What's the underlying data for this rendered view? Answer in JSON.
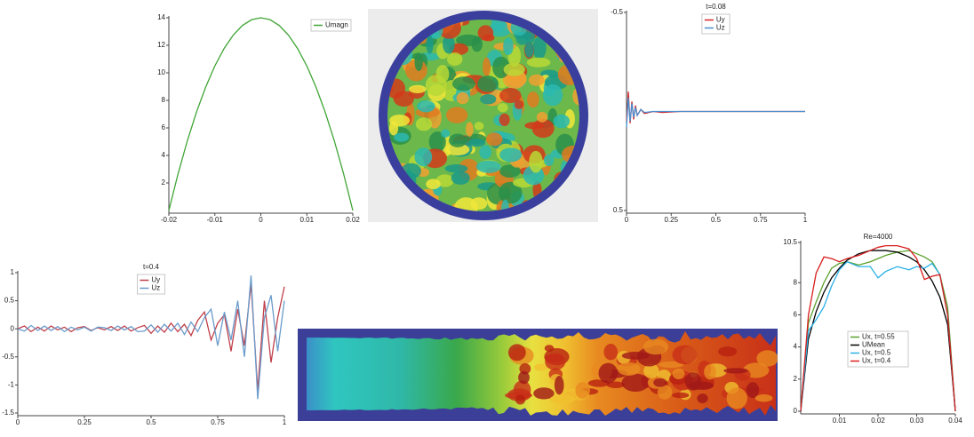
{
  "chart_data": [
    {
      "type": "line",
      "x": [
        -0.02,
        -0.018,
        -0.016,
        -0.014,
        -0.012,
        -0.01,
        -0.008,
        -0.006,
        -0.004,
        -0.002,
        0,
        0.002,
        0.004,
        0.006,
        0.008,
        0.01,
        0.012,
        0.014,
        0.016,
        0.018,
        0.02
      ],
      "series": [
        {
          "name": "Umagn",
          "color": "#3fa535",
          "values": [
            0,
            2.66,
            5.04,
            7.14,
            8.96,
            10.5,
            11.76,
            12.74,
            13.44,
            13.86,
            14,
            13.86,
            13.44,
            12.74,
            11.76,
            10.5,
            8.96,
            7.14,
            5.04,
            2.66,
            0
          ]
        }
      ],
      "xlim": [
        -0.02,
        0.02
      ],
      "ylim": [
        0,
        14
      ],
      "xticks": [
        -0.02,
        -0.01,
        0,
        0.01,
        0.02
      ],
      "yticks": [
        2,
        4,
        6,
        8,
        10,
        12,
        14
      ],
      "legend": "upper right"
    },
    {
      "type": "line",
      "title": "t=0.08",
      "x": [
        0,
        0.01,
        0.02,
        0.03,
        0.04,
        0.05,
        0.06,
        0.08,
        0.1,
        0.15,
        0.2,
        0.3,
        1
      ],
      "series": [
        {
          "name": "Uy",
          "color": "#d62728",
          "values": [
            0.05,
            -0.1,
            0.06,
            -0.05,
            0.04,
            -0.03,
            0.02,
            -0.01,
            0.01,
            0,
            0.005,
            0,
            0
          ]
        },
        {
          "name": "Uz",
          "color": "#4a8fd0",
          "values": [
            0.08,
            -0.07,
            0.05,
            -0.04,
            0.03,
            -0.02,
            0.02,
            -0.01,
            0.005,
            0,
            0,
            0,
            0
          ]
        }
      ],
      "xlim": [
        0,
        1
      ],
      "ylim": [
        -0.5,
        0.5
      ],
      "y_inverted": true,
      "xticks": [
        0,
        0.25,
        0.5,
        0.75,
        1
      ],
      "yticks": [
        -0.5,
        0.5
      ],
      "legend": "upper center"
    },
    {
      "type": "line",
      "title": "t=0.4",
      "x": [
        0,
        0.025,
        0.05,
        0.075,
        0.1,
        0.125,
        0.15,
        0.175,
        0.2,
        0.225,
        0.25,
        0.275,
        0.3,
        0.325,
        0.35,
        0.375,
        0.4,
        0.425,
        0.45,
        0.475,
        0.5,
        0.525,
        0.55,
        0.575,
        0.6,
        0.625,
        0.65,
        0.675,
        0.7,
        0.725,
        0.75,
        0.775,
        0.8,
        0.825,
        0.85,
        0.875,
        0.9,
        0.925,
        0.95,
        0.975,
        1
      ],
      "series": [
        {
          "name": "Uy",
          "color": "#c0404a",
          "values": [
            0,
            0.05,
            -0.05,
            0.03,
            -0.04,
            0.05,
            -0.02,
            0.03,
            -0.05,
            0.02,
            0.04,
            -0.03,
            0.02,
            -0.02,
            0.04,
            -0.03,
            0.05,
            -0.04,
            0.02,
            0.06,
            -0.08,
            0.05,
            -0.06,
            0.1,
            -0.05,
            0.08,
            -0.12,
            0.15,
            0.3,
            -0.2,
            0.1,
            0.25,
            -0.4,
            0.35,
            -0.3,
            0.8,
            -1.1,
            0.5,
            -0.6,
            0.2,
            0.75
          ]
        },
        {
          "name": "Uz",
          "color": "#6a9ccc",
          "values": [
            0,
            -0.04,
            0.06,
            -0.03,
            0.05,
            -0.03,
            0.04,
            -0.05,
            0.03,
            -0.02,
            0.03,
            -0.04,
            0.03,
            0.02,
            -0.03,
            0.05,
            -0.02,
            0.04,
            -0.05,
            -0.04,
            0.07,
            -0.06,
            0.08,
            -0.04,
            0.1,
            -0.1,
            0.12,
            -0.05,
            0.2,
            0.35,
            -0.3,
            0.3,
            -0.2,
            0.5,
            -0.5,
            0.95,
            -1.25,
            0.2,
            0.6,
            -0.4,
            0.5
          ]
        }
      ],
      "xlim": [
        0,
        1
      ],
      "ylim": [
        -1.5,
        1
      ],
      "xticks": [
        0,
        0.25,
        0.5,
        0.75,
        1
      ],
      "yticks": [
        -1.5,
        -1,
        -0.5,
        0,
        0.5,
        1
      ],
      "legend": "upper center"
    },
    {
      "type": "line",
      "title": "Re=4000",
      "x": [
        0,
        0.002,
        0.004,
        0.006,
        0.008,
        0.01,
        0.012,
        0.015,
        0.018,
        0.02,
        0.022,
        0.025,
        0.028,
        0.03,
        0.032,
        0.034,
        0.036,
        0.038,
        0.04
      ],
      "series": [
        {
          "name": "Ux, t=0.55",
          "color": "#5aa02c",
          "values": [
            0,
            5.5,
            6.8,
            8.0,
            8.9,
            9.2,
            9.3,
            9.1,
            9.3,
            9.5,
            9.7,
            9.9,
            10.0,
            9.8,
            9.6,
            9.3,
            8.5,
            6.5,
            0
          ]
        },
        {
          "name": "UMean",
          "color": "#000000",
          "values": [
            0,
            4.5,
            6.2,
            7.4,
            8.3,
            8.9,
            9.4,
            9.8,
            10,
            10,
            10,
            9.9,
            9.6,
            9.3,
            8.8,
            8.1,
            7.1,
            5.4,
            0
          ]
        },
        {
          "name": "Ux, t=0.5",
          "color": "#2ab0e8",
          "values": [
            0,
            5.0,
            5.7,
            6.5,
            7.8,
            8.8,
            9.3,
            9.0,
            9.0,
            8.3,
            8.7,
            9.0,
            8.8,
            9.0,
            8.9,
            9.2,
            8.5,
            6.0,
            0
          ]
        },
        {
          "name": "Ux, t=0.4",
          "color": "#d81e1e",
          "values": [
            0,
            6,
            8.6,
            9.6,
            9.5,
            9.3,
            9.5,
            9.7,
            10.0,
            10.2,
            10.3,
            10.3,
            10.1,
            9.5,
            8.2,
            8.4,
            8.5,
            6.0,
            0
          ]
        }
      ],
      "xlim": [
        0,
        0.04
      ],
      "ylim": [
        0,
        10.5
      ],
      "xticks": [
        0.01,
        0.02,
        0.03,
        0.04
      ],
      "yticks": [
        0,
        2,
        4,
        6,
        8,
        10.5
      ],
      "legend": "lower center"
    }
  ]
}
